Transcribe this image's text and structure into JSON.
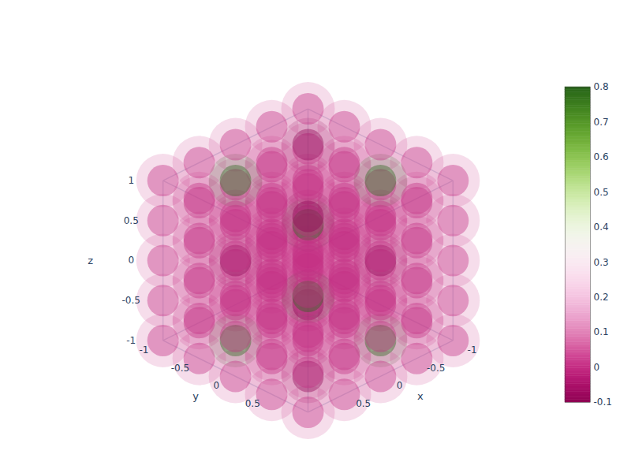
{
  "chart_data": {
    "type": "volume",
    "color": "PiYG",
    "x_label": "x",
    "y_label": "y",
    "z_label": "z",
    "xlim": [
      -1,
      1
    ],
    "ylim": [
      -1,
      1
    ],
    "zlim": [
      -1,
      1
    ],
    "xticks": [
      -1,
      -0.5,
      0,
      0.5
    ],
    "yticks": [
      -1,
      -0.5,
      0,
      0.5
    ],
    "zticks": [
      -1,
      -0.5,
      0,
      0.5,
      1
    ],
    "x": [
      -1,
      -0.5,
      0,
      0.5,
      1
    ],
    "y": [
      -1,
      -0.5,
      0,
      0.5,
      1
    ],
    "z": [
      -1,
      -0.5,
      0,
      0.5,
      1
    ],
    "values": [
      [
        [
          0,
          0,
          0,
          0,
          0
        ],
        [
          0,
          0,
          0,
          0,
          0
        ],
        [
          0,
          0,
          0,
          0,
          0
        ],
        [
          0,
          0,
          0,
          0,
          0
        ],
        [
          0,
          0,
          0,
          0,
          0
        ]
      ],
      [
        [
          0,
          0,
          0,
          0,
          0
        ],
        [
          -0.1,
          0,
          0.8,
          0,
          -0.1
        ],
        [
          0,
          0,
          0,
          0,
          0
        ],
        [
          0.8,
          0,
          -0.1,
          0,
          0.8
        ],
        [
          0,
          0,
          0,
          0,
          0
        ]
      ],
      [
        [
          0,
          0,
          0,
          0,
          0
        ],
        [
          0,
          0,
          0,
          0,
          0
        ],
        [
          0,
          0,
          0,
          0,
          0
        ],
        [
          0,
          0,
          0,
          0,
          0
        ],
        [
          0,
          0,
          0,
          0,
          0
        ]
      ],
      [
        [
          0,
          0,
          0,
          0,
          0
        ],
        [
          0.8,
          0,
          -0.1,
          0,
          0.8
        ],
        [
          0,
          0,
          0,
          0,
          0
        ],
        [
          -0.1,
          0,
          0.8,
          0,
          -0.1
        ],
        [
          0,
          0,
          0,
          0,
          0
        ]
      ],
      [
        [
          0,
          0,
          0,
          0,
          0
        ],
        [
          0,
          0,
          0,
          0,
          0
        ],
        [
          0,
          0,
          0,
          0,
          0
        ],
        [
          0,
          0,
          0,
          0,
          0
        ],
        [
          0,
          0,
          0,
          0,
          0
        ]
      ]
    ],
    "colorbar": {
      "range": [
        -0.1,
        0.8
      ],
      "ticks": [
        -0.1,
        0,
        0.1,
        0.2,
        0.3,
        0.4,
        0.5,
        0.6,
        0.7,
        0.8
      ]
    }
  }
}
